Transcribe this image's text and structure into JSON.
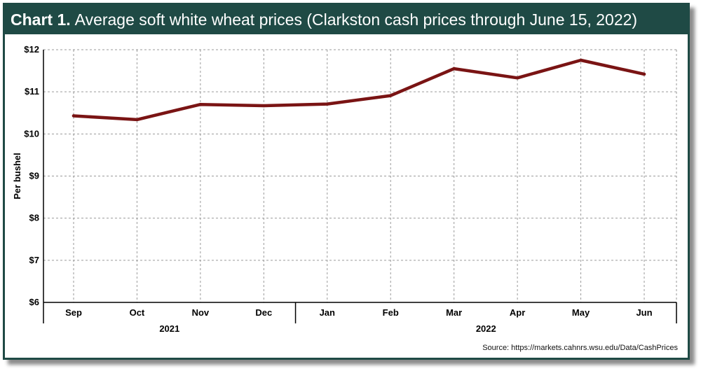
{
  "title": {
    "label": "Chart 1.",
    "text": "Average soft white wheat prices (Clarkston cash prices through June 15, 2022)"
  },
  "colors": {
    "title_bar": "#1f4a45",
    "line": "#7a1414",
    "grid": "#9a9a9a"
  },
  "chart_data": {
    "type": "line",
    "ylabel": "Per bushel",
    "ylim": [
      6,
      12
    ],
    "yticks": [
      "$6",
      "$7",
      "$8",
      "$9",
      "$10",
      "$11",
      "$12"
    ],
    "categories": [
      "Sep",
      "Oct",
      "Nov",
      "Dec",
      "Jan",
      "Feb",
      "Mar",
      "Apr",
      "May",
      "Jun"
    ],
    "year_groups": [
      {
        "label": "2021",
        "categories": [
          "Sep",
          "Oct",
          "Nov",
          "Dec"
        ]
      },
      {
        "label": "2022",
        "categories": [
          "Jan",
          "Feb",
          "Mar",
          "Apr",
          "May",
          "Jun"
        ]
      }
    ],
    "series": [
      {
        "values": [
          10.43,
          10.34,
          10.7,
          10.67,
          10.71,
          10.91,
          11.55,
          11.33,
          11.75,
          11.42
        ]
      }
    ],
    "grid": true
  },
  "source": "Source: https://markets.cahnrs.wsu.edu/Data/CashPrices"
}
